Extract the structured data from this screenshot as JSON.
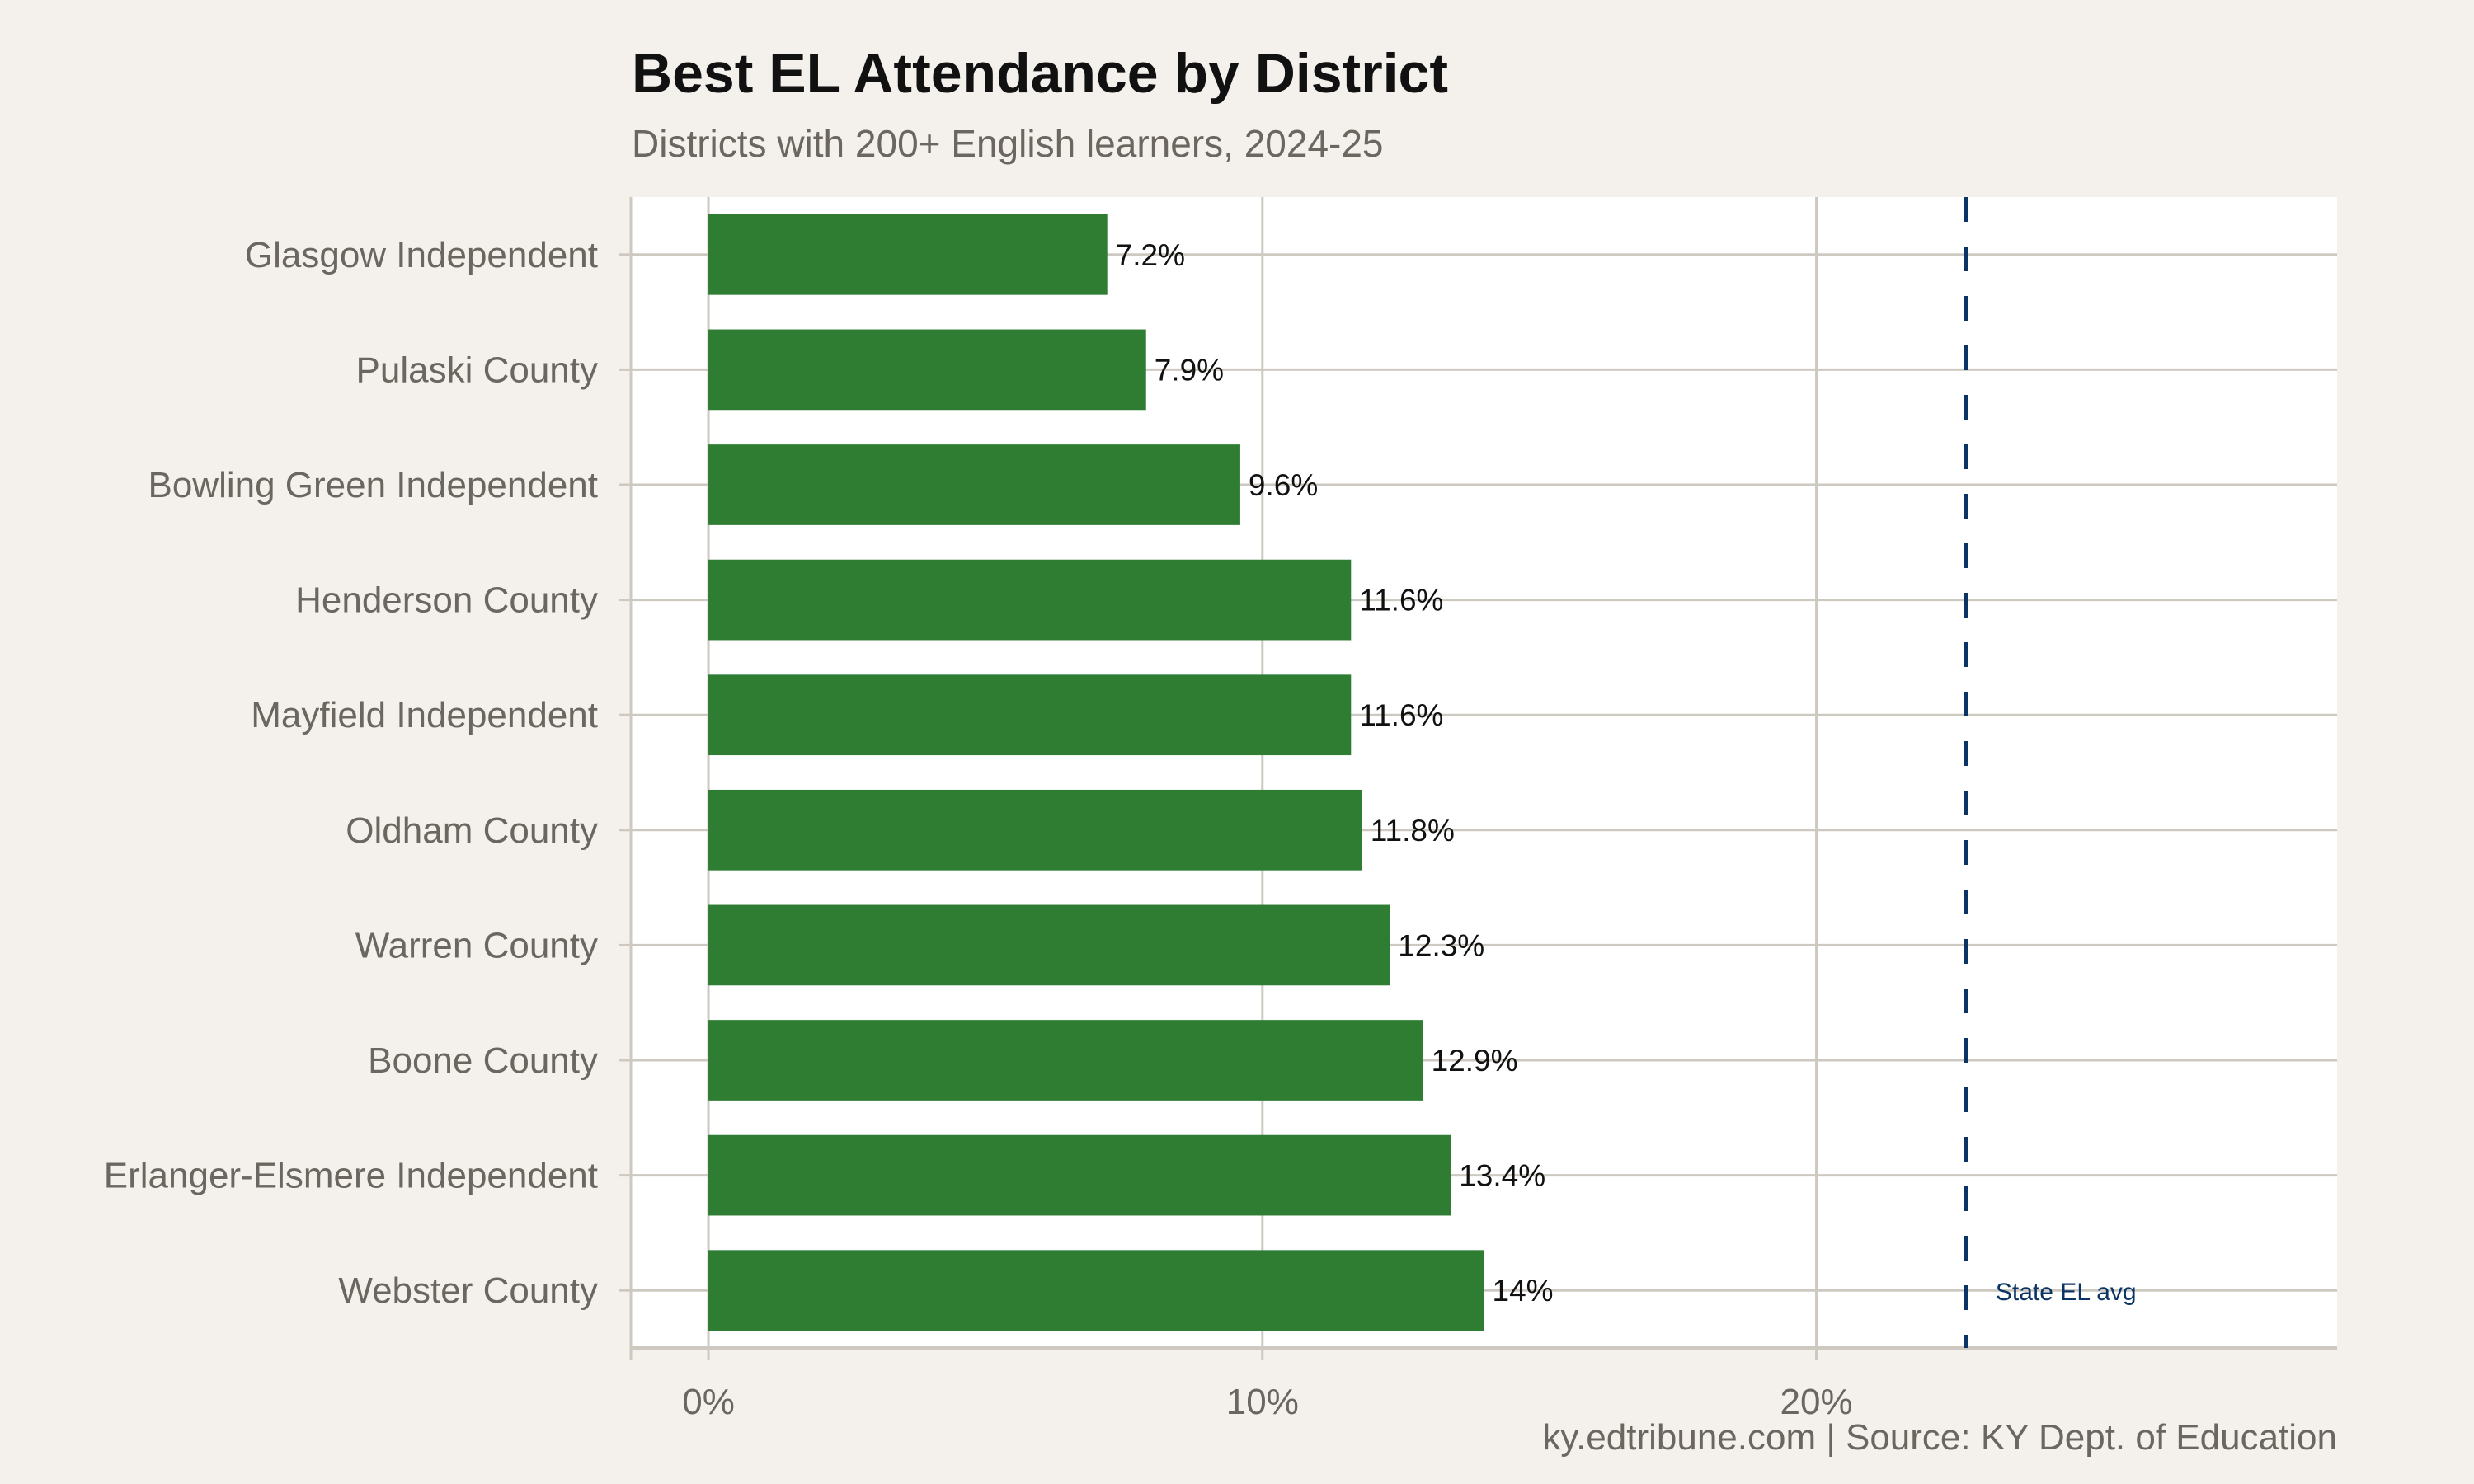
{
  "chart_data": {
    "type": "bar",
    "orientation": "horizontal",
    "title": "Best EL Attendance by District",
    "subtitle": "Districts with 200+ English learners, 2024-25",
    "caption": "ky.edtribune.com | Source: KY Dept. of Education",
    "categories": [
      "Glasgow Independent",
      "Pulaski County",
      "Bowling Green Independent",
      "Henderson County",
      "Mayfield Independent",
      "Oldham County",
      "Warren County",
      "Boone County",
      "Erlanger-Elsmere Independent",
      "Webster County"
    ],
    "values": [
      7.2,
      7.9,
      9.6,
      11.6,
      11.6,
      11.8,
      12.3,
      12.9,
      13.4,
      14.0
    ],
    "data_labels": [
      "7.2%",
      "7.9%",
      "9.6%",
      "11.6%",
      "11.6%",
      "11.8%",
      "12.3%",
      "12.9%",
      "13.4%",
      "14%"
    ],
    "xlabel": "",
    "ylabel": "",
    "xlim": [
      -1.4,
      29.4
    ],
    "x_ticks": [
      0,
      10,
      20
    ],
    "x_tick_labels": [
      "0%",
      "10%",
      "20%"
    ],
    "grid": true,
    "reference_line": {
      "value": 22.7,
      "label": "State EL avg",
      "style": "dashed"
    },
    "colors": {
      "bar": "#2e7d32",
      "reference": "#0b3466",
      "background": "#f4f1ec",
      "panel": "#ffffff",
      "grid": "#cdc9c0"
    }
  }
}
